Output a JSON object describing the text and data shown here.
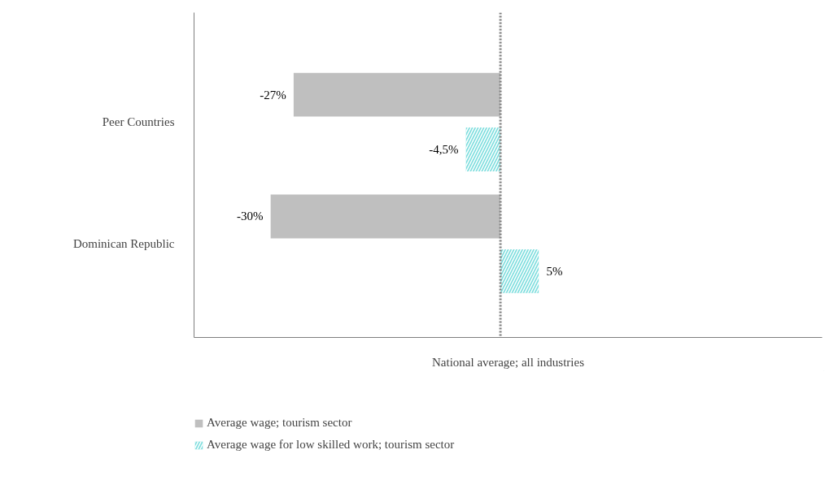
{
  "chart_data": {
    "type": "bar",
    "orientation": "horizontal",
    "categories": [
      "Peer Countries",
      "Dominican Republic"
    ],
    "xlabel": "National average; all industries",
    "xlim": [
      -40,
      42
    ],
    "tick_labels": "y",
    "series": [
      {
        "name": "Average wage; tourism sector",
        "color": "#bfbfbf",
        "values": [
          -27,
          -30
        ],
        "value_labels": [
          "-27%",
          "-30%"
        ]
      },
      {
        "name": "Average wage for low skilled work; tourism sector",
        "color": "#7fdede",
        "values": [
          -4.5,
          5
        ],
        "value_labels": [
          "-4,5%",
          "5%"
        ]
      }
    ],
    "ref_lines": [
      {
        "axis": "x",
        "value": 0,
        "label": null,
        "color": "#7f7f7f",
        "line_style": "dotted"
      }
    ],
    "grid": false,
    "legend": "bottom"
  }
}
